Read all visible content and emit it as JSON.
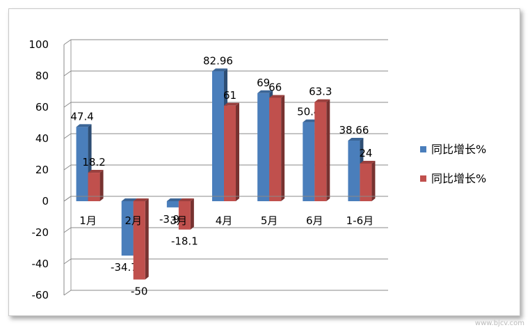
{
  "chart_data": {
    "type": "bar",
    "categories": [
      "1月",
      "2月",
      "3月",
      "4月",
      "5月",
      "6月",
      "1-6月"
    ],
    "series": [
      {
        "name": "同比增长%",
        "color": "#4a7ebb",
        "values": [
          47.4,
          -34.74,
          -3.95,
          82.96,
          69,
          50.4,
          38.66
        ]
      },
      {
        "name": "同比增长%",
        "color": "#c0504d",
        "values": [
          18.2,
          -50,
          -18.1,
          61,
          66,
          63.3,
          24
        ]
      }
    ],
    "data_labels": [
      [
        "47.4",
        "-34.74",
        "-3.95",
        "82.96",
        "69",
        "50.4",
        "38.66"
      ],
      [
        "18.2",
        "-50",
        "-18.1",
        "61",
        "66",
        "63.3",
        "24"
      ]
    ],
    "yticks": [
      "100",
      "80",
      "60",
      "40",
      "20",
      "0",
      "-20",
      "-40",
      "-60"
    ],
    "ylim": [
      -60,
      100
    ],
    "grid": true,
    "legend_position": "right",
    "style": "3d-clustered-column"
  },
  "watermark": "www.bjcv.com"
}
